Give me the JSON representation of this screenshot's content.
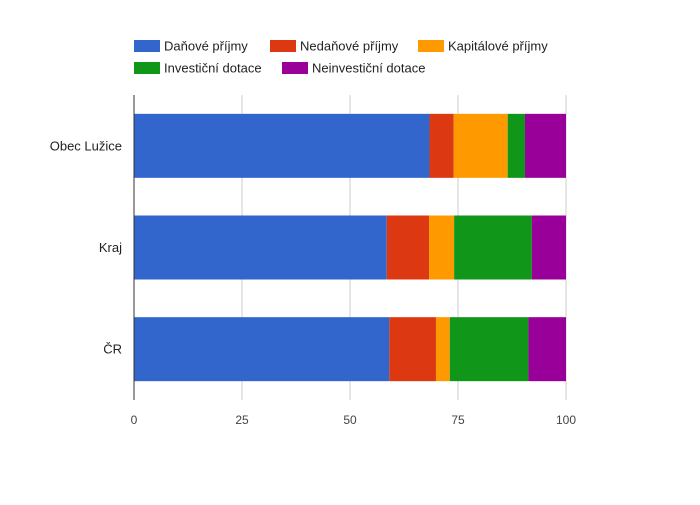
{
  "chart_data": {
    "type": "bar",
    "orientation": "horizontal",
    "stacked": true,
    "title": "",
    "xlabel": "",
    "ylabel": "",
    "xlim": [
      0,
      100
    ],
    "x_ticks": [
      0,
      25,
      50,
      75,
      100
    ],
    "grid": true,
    "legend_position": "top",
    "categories": [
      "Obec Lužice",
      "Kraj",
      "ČR"
    ],
    "series": [
      {
        "name": "Daňové příjmy",
        "color": "#3366cc",
        "values": [
          68.4,
          58.5,
          59.1
        ]
      },
      {
        "name": "Nedaňové příjmy",
        "color": "#dc3912",
        "values": [
          5.6,
          9.8,
          10.8
        ]
      },
      {
        "name": "Kapitálové příjmy",
        "color": "#ff9900",
        "values": [
          12.5,
          5.8,
          3.2
        ]
      },
      {
        "name": "Investiční dotace",
        "color": "#109618",
        "values": [
          4.0,
          18.0,
          18.2
        ]
      },
      {
        "name": "Neinvestiční dotace",
        "color": "#990099",
        "values": [
          9.5,
          7.9,
          8.7
        ]
      }
    ]
  }
}
